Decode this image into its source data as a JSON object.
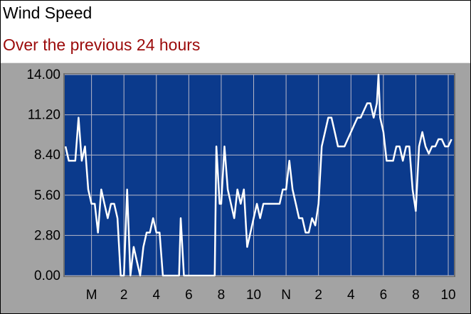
{
  "chart_data": {
    "type": "line",
    "title": "Wind Speed",
    "subtitle": "Over the previous 24  hours",
    "x": [
      -1.6,
      -1.4,
      -1.2,
      -1.0,
      -0.8,
      -0.6,
      -0.4,
      -0.2,
      0.0,
      0.2,
      0.4,
      0.6,
      0.8,
      1.0,
      1.2,
      1.4,
      1.6,
      1.8,
      2.0,
      2.2,
      2.4,
      2.6,
      2.8,
      3.0,
      3.2,
      3.4,
      3.6,
      3.8,
      4.0,
      4.2,
      4.4,
      4.6,
      5.0,
      5.4,
      5.5,
      5.7,
      6.0,
      7.0,
      7.6,
      7.7,
      7.9,
      8.0,
      8.2,
      8.4,
      8.6,
      8.8,
      9.0,
      9.2,
      9.4,
      9.6,
      9.8,
      10.0,
      10.2,
      10.4,
      10.6,
      10.8,
      11.0,
      11.2,
      11.4,
      11.6,
      11.8,
      12.0,
      12.2,
      12.4,
      12.6,
      12.8,
      13.0,
      13.2,
      13.4,
      13.6,
      13.8,
      14.0,
      14.2,
      14.4,
      14.6,
      14.8,
      15.0,
      15.2,
      15.4,
      15.6,
      15.8,
      16.0,
      16.2,
      16.4,
      16.6,
      16.8,
      17.0,
      17.2,
      17.4,
      17.6,
      17.7,
      17.8,
      18.0,
      18.2,
      18.4,
      18.6,
      18.8,
      19.0,
      19.2,
      19.4,
      19.6,
      19.8,
      20.0,
      20.2,
      20.4,
      20.6,
      20.8,
      21.0,
      21.2,
      21.4,
      21.6,
      21.8,
      22.0,
      22.2
    ],
    "values": [
      9,
      8,
      8,
      8,
      11,
      8,
      9,
      6,
      5,
      5,
      3,
      6,
      5,
      4,
      5,
      5,
      4,
      0,
      0,
      6,
      0,
      2,
      1,
      0,
      2,
      3,
      3,
      4,
      3,
      3,
      0,
      0,
      0,
      0,
      4,
      0,
      0,
      0,
      0,
      9,
      5,
      5,
      9,
      6,
      5,
      4,
      6,
      5,
      6,
      2,
      3,
      4,
      5,
      4,
      5,
      5,
      5,
      5,
      5,
      5,
      6,
      6,
      8,
      6,
      5,
      4,
      4,
      3,
      3,
      4,
      3.5,
      5,
      9,
      10,
      11,
      11,
      10,
      9,
      9,
      9,
      9.5,
      10,
      10.5,
      11,
      11,
      11.5,
      12,
      12,
      11,
      12,
      14,
      11,
      10,
      8,
      8,
      8,
      9,
      9,
      8,
      9,
      9,
      6,
      4.5,
      9,
      10,
      9,
      8.5,
      9,
      9,
      9.5,
      9.5,
      9,
      9,
      9.5
    ],
    "color": "#ffffff",
    "xlim": [
      -1.65,
      22.35
    ],
    "ylim": [
      0,
      14
    ],
    "xticks": [
      {
        "value": 0,
        "label": "M"
      },
      2,
      4,
      6,
      8,
      10,
      {
        "value": 12,
        "label": "N"
      },
      {
        "value": 14,
        "label": "2"
      },
      {
        "value": 16,
        "label": "4"
      },
      {
        "value": 18,
        "label": "6"
      },
      {
        "value": 20,
        "label": "8"
      },
      {
        "value": 22,
        "label": "10"
      }
    ],
    "yticks": [
      {
        "value": 0,
        "label": "0.00"
      },
      {
        "value": 2.8,
        "label": "2.80"
      },
      {
        "value": 5.6,
        "label": "5.60"
      },
      {
        "value": 8.4,
        "label": "8.40"
      },
      {
        "value": 11.2,
        "label": "11.20"
      },
      {
        "value": 14,
        "label": "14.00"
      }
    ],
    "grid": true
  }
}
